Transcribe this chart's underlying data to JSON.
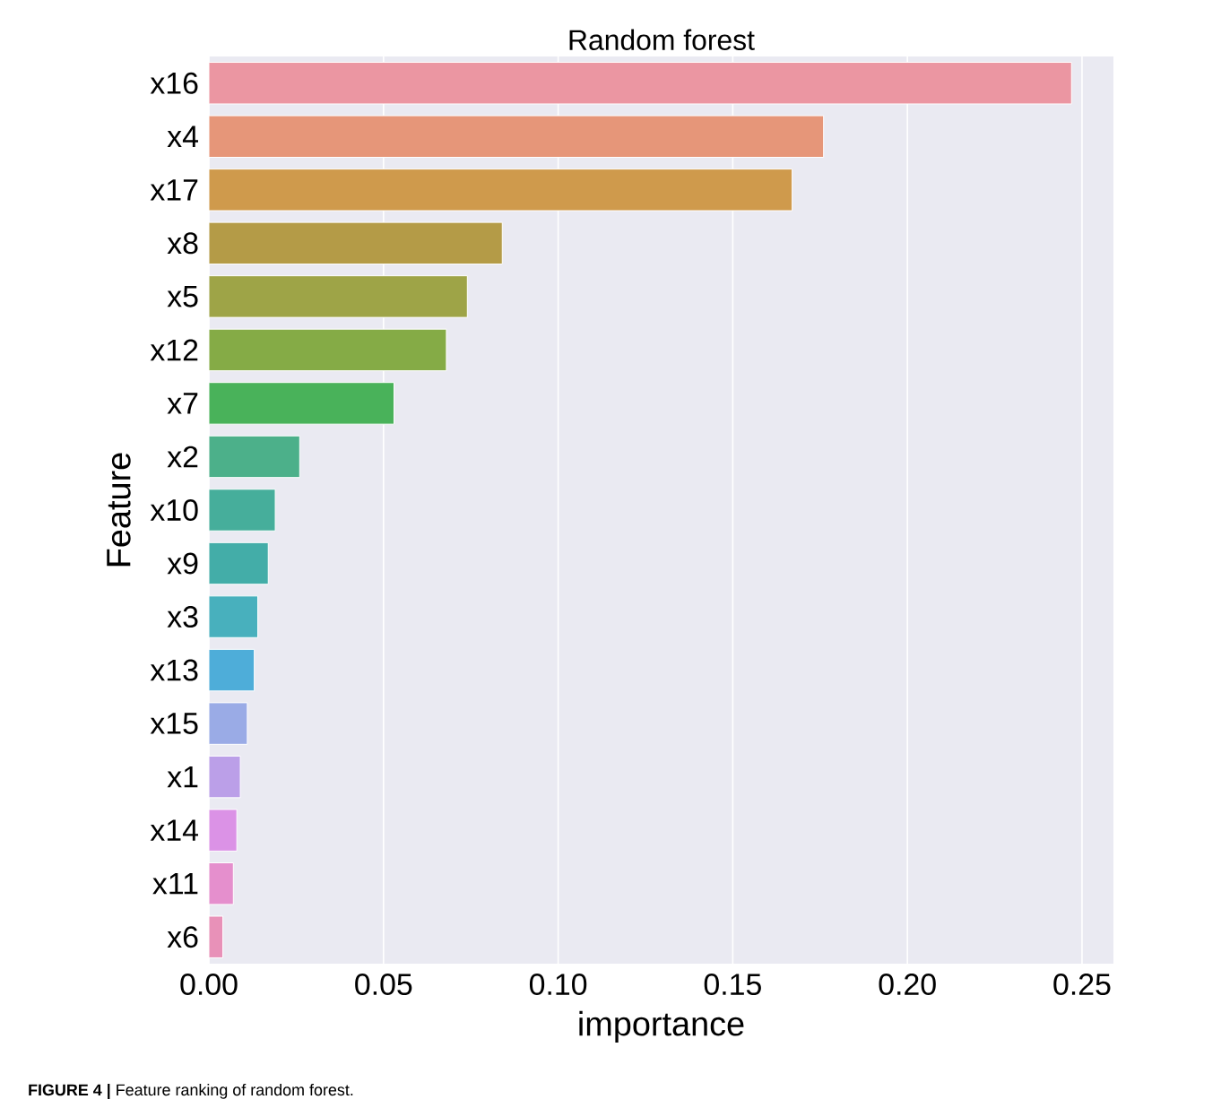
{
  "chart_data": {
    "type": "bar",
    "orientation": "horizontal",
    "title": "Random forest",
    "xlabel": "importance",
    "ylabel": "Feature",
    "categories": [
      "x16",
      "x4",
      "x17",
      "x8",
      "x5",
      "x12",
      "x7",
      "x2",
      "x10",
      "x9",
      "x3",
      "x13",
      "x15",
      "x1",
      "x14",
      "x11",
      "x6"
    ],
    "values": [
      0.247,
      0.176,
      0.167,
      0.084,
      0.074,
      0.068,
      0.053,
      0.026,
      0.019,
      0.017,
      0.014,
      0.013,
      0.011,
      0.009,
      0.008,
      0.007,
      0.004
    ],
    "colors": [
      "#eb96a2",
      "#e69679",
      "#cf9a4c",
      "#b49b47",
      "#9ea447",
      "#85ab46",
      "#49b25a",
      "#4cb08a",
      "#46ae9b",
      "#43ada8",
      "#48b0bd",
      "#4eadd9",
      "#9aabe6",
      "#bb9fe8",
      "#db92e6",
      "#e58fcd",
      "#e891b8"
    ],
    "xlim": [
      0,
      0.259
    ],
    "xticks": [
      {
        "value": 0,
        "label": "0.00"
      },
      {
        "value": 0.05,
        "label": "0.05"
      },
      {
        "value": 0.1,
        "label": "0.10"
      },
      {
        "value": 0.15,
        "label": "0.15"
      },
      {
        "value": 0.2,
        "label": "0.20"
      },
      {
        "value": 0.25,
        "label": "0.25"
      }
    ],
    "grid": "x",
    "annotations": [
      "**FIGURE 4 |** Feature ranking of random forest."
    ]
  }
}
